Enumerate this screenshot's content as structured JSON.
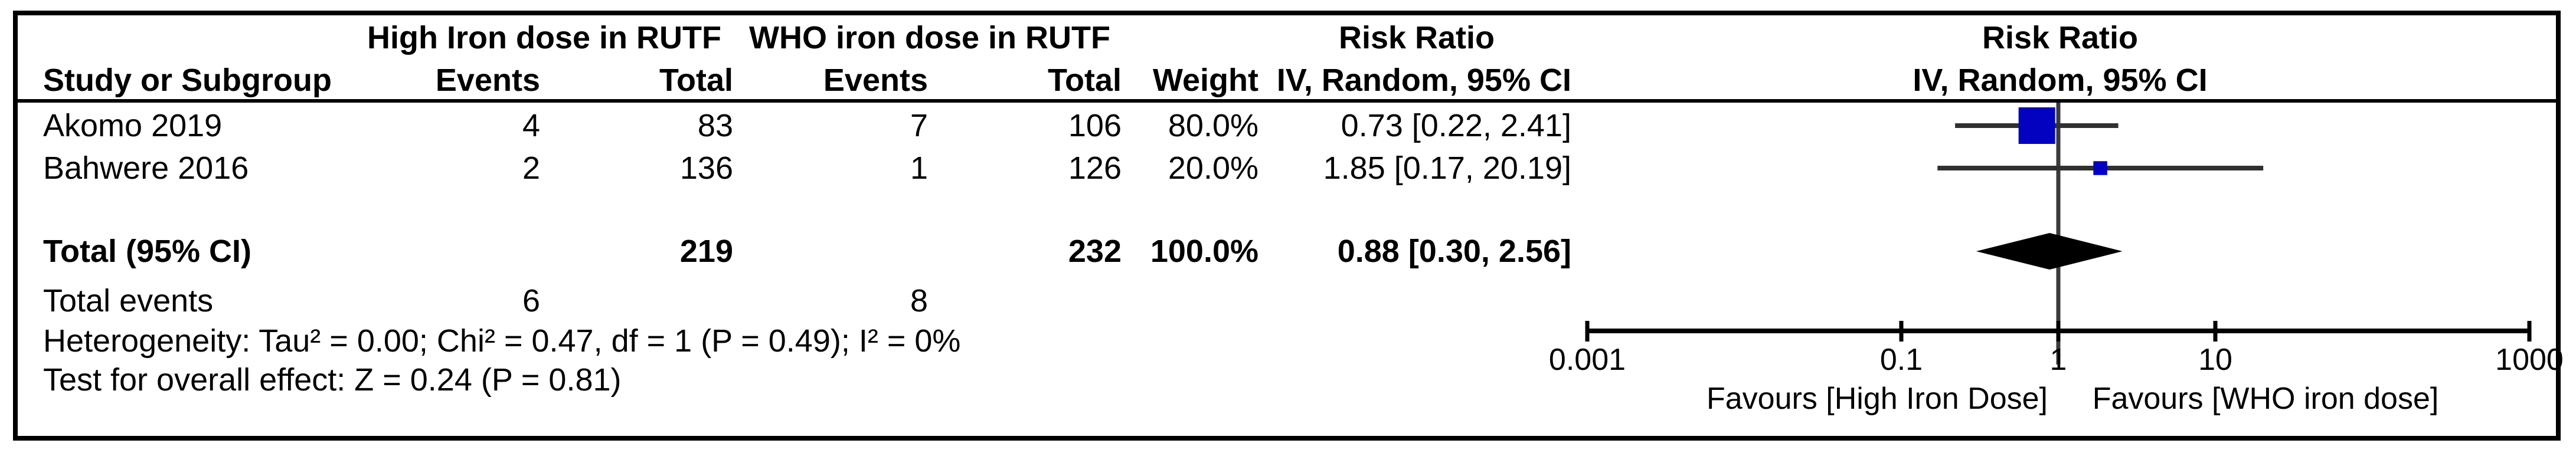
{
  "figure": {
    "background": "#ffffff",
    "border_color": "#000000"
  },
  "table": {
    "header": {
      "group1": "High Iron dose in RUTF",
      "group2": "WHO iron dose in RUTF",
      "risk_ratio_stats": "Risk Ratio",
      "risk_ratio_plot": "Risk Ratio",
      "study": "Study or Subgroup",
      "events1": "Events",
      "total1": "Total",
      "events2": "Events",
      "total2": "Total",
      "weight": "Weight",
      "ci_stats": "IV, Random, 95% CI",
      "ci_plot": "IV, Random, 95% CI"
    },
    "studies": [
      {
        "name": "Akomo 2019",
        "events1": "4",
        "total1": "83",
        "events2": "7",
        "total2": "106",
        "weight": "80.0%",
        "ci": "0.73 [0.22, 2.41]"
      },
      {
        "name": "Bahwere 2016",
        "events1": "2",
        "total1": "136",
        "events2": "1",
        "total2": "126",
        "weight": "20.0%",
        "ci": "1.85 [0.17, 20.19]"
      }
    ],
    "total_row": {
      "label": "Total (95% CI)",
      "total1": "219",
      "total2": "232",
      "weight": "100.0%",
      "ci": "0.88 [0.30, 2.56]"
    },
    "total_events_row": {
      "label": "Total events",
      "events1": "6",
      "events2": "8"
    },
    "heterogeneity": "Heterogeneity: Tau² = 0.00; Chi² = 0.47, df = 1 (P = 0.49); I² = 0%",
    "overall_effect": "Test for overall effect: Z = 0.24 (P = 0.81)"
  },
  "chart_data": {
    "type": "forest",
    "effect_measure": "Risk Ratio, IV, Random, 95% CI",
    "x_scale": "log",
    "axis_range": [
      0.001,
      1000
    ],
    "axis_ticks": [
      0.001,
      0.1,
      1,
      10,
      1000
    ],
    "axis_tick_labels": [
      "0.001",
      "0.1",
      "1",
      "10",
      "1000"
    ],
    "null_line": 1,
    "studies": [
      {
        "label": "Akomo 2019",
        "rr": 0.73,
        "ci_low": 0.22,
        "ci_high": 2.41,
        "weight_pct": 80.0
      },
      {
        "label": "Bahwere 2016",
        "rr": 1.85,
        "ci_low": 0.17,
        "ci_high": 20.19,
        "weight_pct": 20.0
      }
    ],
    "overall": {
      "label": "Total (95% CI)",
      "rr": 0.88,
      "ci_low": 0.3,
      "ci_high": 2.56,
      "weight_pct": 100.0
    },
    "favours_left": "Favours [High Iron Dose]",
    "favours_right": "Favours [WHO iron dose]",
    "marker_color": "#0202C0",
    "ci_line_color": "#303030",
    "null_line_color": "#3a3a3a",
    "axis_color": "#000000",
    "diamond_color": "#000000"
  }
}
